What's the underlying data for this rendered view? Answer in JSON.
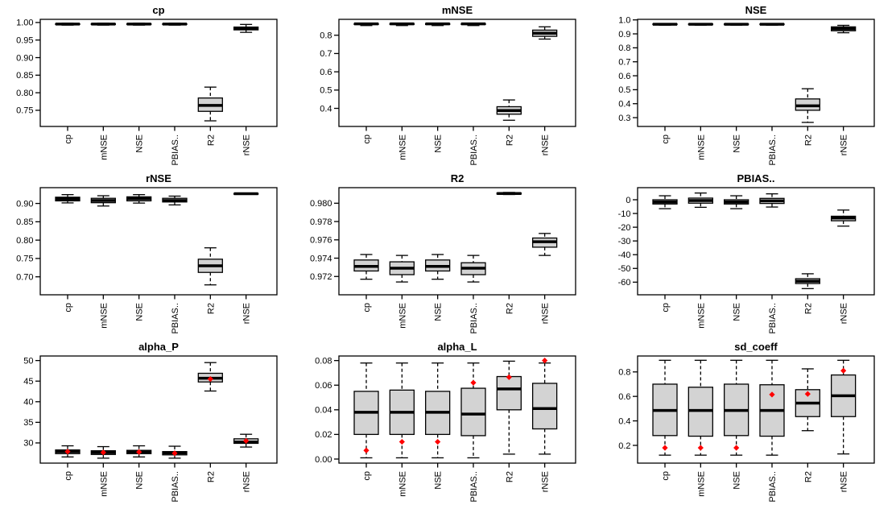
{
  "colors": {
    "background": "#ffffff",
    "line": "#000000",
    "box_fill": "#d3d3d3",
    "mean_marker": "#ff0000"
  },
  "chart_data": [
    {
      "type": "box",
      "title": "cp",
      "categories": [
        "cp",
        "mNSE",
        "NSE",
        "PBIAS..",
        "R2",
        "rNSE"
      ],
      "ylim": [
        0.704,
        1.009
      ],
      "yticks": [
        {
          "v": 0.75,
          "label": "0.75"
        },
        {
          "v": 0.8,
          "label": "0.80"
        },
        {
          "v": 0.85,
          "label": "0.85"
        },
        {
          "v": 0.9,
          "label": "0.90"
        },
        {
          "v": 0.95,
          "label": "0.95"
        },
        {
          "v": 1.0,
          "label": "1.00"
        }
      ],
      "boxes": [
        {
          "lo": 0.9925,
          "q1": 0.9945,
          "med": 0.9955,
          "q3": 0.9965,
          "hi": 0.998,
          "mean": null
        },
        {
          "lo": 0.9925,
          "q1": 0.9945,
          "med": 0.9955,
          "q3": 0.9965,
          "hi": 0.998,
          "mean": null
        },
        {
          "lo": 0.9925,
          "q1": 0.9945,
          "med": 0.9955,
          "q3": 0.9965,
          "hi": 0.998,
          "mean": null
        },
        {
          "lo": 0.9925,
          "q1": 0.9945,
          "med": 0.9955,
          "q3": 0.9965,
          "hi": 0.998,
          "mean": null
        },
        {
          "lo": 0.72,
          "q1": 0.747,
          "med": 0.764,
          "q3": 0.785,
          "hi": 0.816,
          "mean": null
        },
        {
          "lo": 0.972,
          "q1": 0.979,
          "med": 0.983,
          "q3": 0.987,
          "hi": 0.9945,
          "mean": null
        }
      ]
    },
    {
      "type": "box",
      "title": "mNSE",
      "categories": [
        "cp",
        "mNSE",
        "NSE",
        "PBIAS..",
        "R2",
        "rNSE"
      ],
      "ylim": [
        0.301,
        0.887
      ],
      "yticks": [
        {
          "v": 0.4,
          "label": "0.4"
        },
        {
          "v": 0.5,
          "label": "0.5"
        },
        {
          "v": 0.6,
          "label": "0.6"
        },
        {
          "v": 0.7,
          "label": "0.7"
        },
        {
          "v": 0.8,
          "label": "0.8"
        }
      ],
      "boxes": [
        {
          "lo": 0.853,
          "q1": 0.859,
          "med": 0.862,
          "q3": 0.864,
          "hi": 0.866,
          "mean": null
        },
        {
          "lo": 0.853,
          "q1": 0.859,
          "med": 0.862,
          "q3": 0.864,
          "hi": 0.866,
          "mean": null
        },
        {
          "lo": 0.853,
          "q1": 0.859,
          "med": 0.862,
          "q3": 0.864,
          "hi": 0.866,
          "mean": null
        },
        {
          "lo": 0.853,
          "q1": 0.859,
          "med": 0.862,
          "q3": 0.864,
          "hi": 0.866,
          "mean": null
        },
        {
          "lo": 0.335,
          "q1": 0.368,
          "med": 0.388,
          "q3": 0.409,
          "hi": 0.446,
          "mean": null
        },
        {
          "lo": 0.779,
          "q1": 0.794,
          "med": 0.811,
          "q3": 0.828,
          "hi": 0.846,
          "mean": null
        }
      ]
    },
    {
      "type": "box",
      "title": "NSE",
      "categories": [
        "cp",
        "mNSE",
        "NSE",
        "PBIAS..",
        "R2",
        "rNSE"
      ],
      "ylim": [
        0.237,
        1.004
      ],
      "yticks": [
        {
          "v": 0.3,
          "label": "0.3"
        },
        {
          "v": 0.4,
          "label": "0.4"
        },
        {
          "v": 0.5,
          "label": "0.5"
        },
        {
          "v": 0.6,
          "label": "0.6"
        },
        {
          "v": 0.7,
          "label": "0.7"
        },
        {
          "v": 0.8,
          "label": "0.8"
        },
        {
          "v": 0.9,
          "label": "0.9"
        },
        {
          "v": 1.0,
          "label": "1.0"
        }
      ],
      "boxes": [
        {
          "lo": 0.962,
          "q1": 0.967,
          "med": 0.969,
          "q3": 0.971,
          "hi": 0.974,
          "mean": null
        },
        {
          "lo": 0.962,
          "q1": 0.967,
          "med": 0.969,
          "q3": 0.971,
          "hi": 0.974,
          "mean": null
        },
        {
          "lo": 0.962,
          "q1": 0.967,
          "med": 0.969,
          "q3": 0.971,
          "hi": 0.974,
          "mean": null
        },
        {
          "lo": 0.962,
          "q1": 0.967,
          "med": 0.969,
          "q3": 0.971,
          "hi": 0.974,
          "mean": null
        },
        {
          "lo": 0.266,
          "q1": 0.353,
          "med": 0.385,
          "q3": 0.434,
          "hi": 0.507,
          "mean": null
        },
        {
          "lo": 0.908,
          "q1": 0.922,
          "med": 0.937,
          "q3": 0.95,
          "hi": 0.961,
          "mean": null
        }
      ]
    },
    {
      "type": "box",
      "title": "rNSE",
      "categories": [
        "cp",
        "mNSE",
        "NSE",
        "PBIAS..",
        "R2",
        "rNSE"
      ],
      "ylim": [
        0.651,
        0.943
      ],
      "yticks": [
        {
          "v": 0.7,
          "label": "0.70"
        },
        {
          "v": 0.75,
          "label": "0.75"
        },
        {
          "v": 0.8,
          "label": "0.80"
        },
        {
          "v": 0.85,
          "label": "0.85"
        },
        {
          "v": 0.9,
          "label": "0.90"
        }
      ],
      "boxes": [
        {
          "lo": 0.9015,
          "q1": 0.907,
          "med": 0.912,
          "q3": 0.917,
          "hi": 0.924,
          "mean": null
        },
        {
          "lo": 0.893,
          "q1": 0.902,
          "med": 0.908,
          "q3": 0.914,
          "hi": 0.921,
          "mean": null
        },
        {
          "lo": 0.901,
          "q1": 0.907,
          "med": 0.913,
          "q3": 0.918,
          "hi": 0.924,
          "mean": null
        },
        {
          "lo": 0.896,
          "q1": 0.904,
          "med": 0.908,
          "q3": 0.914,
          "hi": 0.92,
          "mean": null
        },
        {
          "lo": 0.678,
          "q1": 0.712,
          "med": 0.73,
          "q3": 0.748,
          "hi": 0.779,
          "mean": null
        },
        {
          "lo": 0.9255,
          "q1": 0.926,
          "med": 0.9265,
          "q3": 0.927,
          "hi": 0.9275,
          "mean": null
        }
      ]
    },
    {
      "type": "box",
      "title": "R2",
      "categories": [
        "cp",
        "mNSE",
        "NSE",
        "PBIAS..",
        "R2",
        "rNSE"
      ],
      "ylim": [
        0.97,
        0.9817
      ],
      "yticks": [
        {
          "v": 0.972,
          "label": "0.972"
        },
        {
          "v": 0.974,
          "label": "0.974"
        },
        {
          "v": 0.976,
          "label": "0.976"
        },
        {
          "v": 0.978,
          "label": "0.978"
        },
        {
          "v": 0.98,
          "label": "0.980"
        }
      ],
      "boxes": [
        {
          "lo": 0.9717,
          "q1": 0.9726,
          "med": 0.9731,
          "q3": 0.9738,
          "hi": 0.9744,
          "mean": null
        },
        {
          "lo": 0.9714,
          "q1": 0.9722,
          "med": 0.9729,
          "q3": 0.9736,
          "hi": 0.9743,
          "mean": null
        },
        {
          "lo": 0.9717,
          "q1": 0.9726,
          "med": 0.9731,
          "q3": 0.9738,
          "hi": 0.9744,
          "mean": null
        },
        {
          "lo": 0.9714,
          "q1": 0.9722,
          "med": 0.9729,
          "q3": 0.9735,
          "hi": 0.9743,
          "mean": null
        },
        {
          "lo": 0.98095,
          "q1": 0.981,
          "med": 0.98106,
          "q3": 0.98112,
          "hi": 0.98118,
          "mean": null
        },
        {
          "lo": 0.9743,
          "q1": 0.9752,
          "med": 0.9758,
          "q3": 0.9762,
          "hi": 0.9767,
          "mean": null
        }
      ]
    },
    {
      "type": "box",
      "title": "PBIAS..",
      "categories": [
        "cp",
        "mNSE",
        "NSE",
        "PBIAS..",
        "R2",
        "rNSE"
      ],
      "ylim": [
        -69.2,
        8.8
      ],
      "yticks": [
        {
          "v": -60,
          "label": "-60"
        },
        {
          "v": -50,
          "label": "-50"
        },
        {
          "v": -40,
          "label": "-40"
        },
        {
          "v": -30,
          "label": "-30"
        },
        {
          "v": -20,
          "label": "-20"
        },
        {
          "v": -10,
          "label": "-10"
        },
        {
          "v": 0,
          "label": "0"
        }
      ],
      "boxes": [
        {
          "lo": -6.5,
          "q1": -3.1,
          "med": -1.6,
          "q3": 0.0,
          "hi": 2.9,
          "mean": null
        },
        {
          "lo": -5.5,
          "q1": -2.5,
          "med": -0.6,
          "q3": 1.2,
          "hi": 4.9,
          "mean": null
        },
        {
          "lo": -6.5,
          "q1": -3.1,
          "med": -1.6,
          "q3": 0.0,
          "hi": 2.9,
          "mean": null
        },
        {
          "lo": -5.3,
          "q1": -2.7,
          "med": -0.8,
          "q3": 1.0,
          "hi": 4.3,
          "mean": null
        },
        {
          "lo": -64.7,
          "q1": -61.0,
          "med": -59.3,
          "q3": -57.5,
          "hi": -53.9,
          "mean": null
        },
        {
          "lo": -19.2,
          "q1": -15.3,
          "med": -13.3,
          "q3": -12.0,
          "hi": -7.5,
          "mean": null
        }
      ]
    },
    {
      "type": "box",
      "title": "alpha_P",
      "categories": [
        "cp",
        "mNSE",
        "NSE",
        "PBIAS..",
        "R2",
        "rNSE"
      ],
      "ylim": [
        25.1,
        51.1
      ],
      "yticks": [
        {
          "v": 30,
          "label": "30"
        },
        {
          "v": 35,
          "label": "35"
        },
        {
          "v": 40,
          "label": "40"
        },
        {
          "v": 45,
          "label": "45"
        },
        {
          "v": 50,
          "label": "50"
        }
      ],
      "boxes": [
        {
          "lo": 26.6,
          "q1": 27.4,
          "med": 27.9,
          "q3": 28.3,
          "hi": 29.3,
          "mean": 27.9
        },
        {
          "lo": 26.3,
          "q1": 27.2,
          "med": 27.7,
          "q3": 28.1,
          "hi": 29.1,
          "mean": 27.7
        },
        {
          "lo": 26.6,
          "q1": 27.4,
          "med": 27.8,
          "q3": 28.2,
          "hi": 29.3,
          "mean": 27.8
        },
        {
          "lo": 26.3,
          "q1": 27.1,
          "med": 27.6,
          "q3": 27.9,
          "hi": 29.2,
          "mean": 27.5
        },
        {
          "lo": 42.6,
          "q1": 44.8,
          "med": 45.7,
          "q3": 46.9,
          "hi": 49.5,
          "mean": 45.5
        },
        {
          "lo": 29.0,
          "q1": 29.9,
          "med": 30.2,
          "q3": 31.0,
          "hi": 32.1,
          "mean": 30.5
        }
      ]
    },
    {
      "type": "box",
      "title": "alpha_L",
      "categories": [
        "cp",
        "mNSE",
        "NSE",
        "PBIAS..",
        "R2",
        "rNSE"
      ],
      "ylim": [
        -0.0033,
        0.0837
      ],
      "yticks": [
        {
          "v": 0.0,
          "label": "0.00"
        },
        {
          "v": 0.02,
          "label": "0.02"
        },
        {
          "v": 0.04,
          "label": "0.04"
        },
        {
          "v": 0.06,
          "label": "0.06"
        },
        {
          "v": 0.08,
          "label": "0.08"
        }
      ],
      "boxes": [
        {
          "lo": 0.001,
          "q1": 0.02,
          "med": 0.038,
          "q3": 0.055,
          "hi": 0.078,
          "mean": 0.007
        },
        {
          "lo": 0.001,
          "q1": 0.02,
          "med": 0.038,
          "q3": 0.056,
          "hi": 0.078,
          "mean": 0.014
        },
        {
          "lo": 0.001,
          "q1": 0.02,
          "med": 0.038,
          "q3": 0.055,
          "hi": 0.078,
          "mean": 0.014
        },
        {
          "lo": 0.001,
          "q1": 0.019,
          "med": 0.0365,
          "q3": 0.0575,
          "hi": 0.078,
          "mean": 0.062
        },
        {
          "lo": 0.004,
          "q1": 0.04,
          "med": 0.057,
          "q3": 0.067,
          "hi": 0.0795,
          "mean": 0.0665
        },
        {
          "lo": 0.004,
          "q1": 0.0245,
          "med": 0.041,
          "q3": 0.0615,
          "hi": 0.078,
          "mean": 0.08
        }
      ]
    },
    {
      "type": "box",
      "title": "sd_coeff",
      "categories": [
        "cp",
        "mNSE",
        "NSE",
        "PBIAS..",
        "R2",
        "rNSE"
      ],
      "ylim": [
        0.055,
        0.93
      ],
      "yticks": [
        {
          "v": 0.2,
          "label": "0.2"
        },
        {
          "v": 0.4,
          "label": "0.4"
        },
        {
          "v": 0.6,
          "label": "0.6"
        },
        {
          "v": 0.8,
          "label": "0.8"
        }
      ],
      "boxes": [
        {
          "lo": 0.12,
          "q1": 0.28,
          "med": 0.485,
          "q3": 0.7,
          "hi": 0.895,
          "mean": 0.18
        },
        {
          "lo": 0.12,
          "q1": 0.275,
          "med": 0.485,
          "q3": 0.675,
          "hi": 0.895,
          "mean": 0.18
        },
        {
          "lo": 0.12,
          "q1": 0.28,
          "med": 0.485,
          "q3": 0.7,
          "hi": 0.895,
          "mean": 0.18
        },
        {
          "lo": 0.12,
          "q1": 0.275,
          "med": 0.485,
          "q3": 0.695,
          "hi": 0.895,
          "mean": 0.615
        },
        {
          "lo": 0.32,
          "q1": 0.435,
          "med": 0.545,
          "q3": 0.655,
          "hi": 0.825,
          "mean": 0.62
        },
        {
          "lo": 0.13,
          "q1": 0.435,
          "med": 0.605,
          "q3": 0.775,
          "hi": 0.895,
          "mean": 0.81
        }
      ]
    }
  ]
}
